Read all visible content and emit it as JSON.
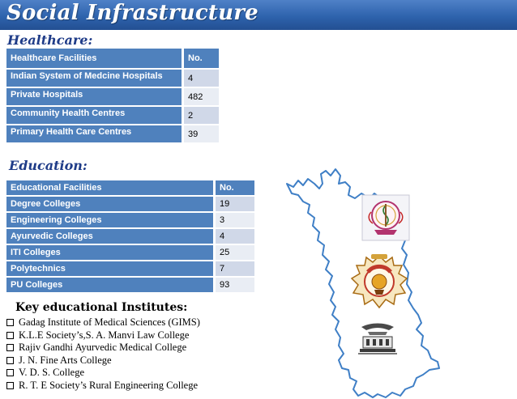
{
  "header": {
    "title": "Social Infrastructure"
  },
  "healthcare": {
    "heading": "Healthcare:",
    "columns": [
      "Healthcare Facilities",
      "No."
    ],
    "rows": [
      {
        "name": "Indian System of Medcine Hospitals",
        "value": "4"
      },
      {
        "name": "Private Hospitals",
        "value": "482"
      },
      {
        "name": "Community Health Centres",
        "value": "2"
      },
      {
        "name": "Primary Health Care Centres",
        "value": "39"
      }
    ]
  },
  "education": {
    "heading": "Education:",
    "columns": [
      "Educational Facilities",
      "No."
    ],
    "rows": [
      {
        "name": "Degree Colleges",
        "value": "19"
      },
      {
        "name": "Engineering Colleges",
        "value": "3"
      },
      {
        "name": "Ayurvedic Colleges",
        "value": "4"
      },
      {
        "name": "ITI Colleges",
        "value": "25"
      },
      {
        "name": "Polytechnics",
        "value": "7"
      },
      {
        "name": "PU Colleges",
        "value": "93"
      }
    ]
  },
  "institutes": {
    "title": "Key educational Institutes:",
    "items": [
      "Gadag Institute of Medical Sciences (GIMS)",
      "K.L.E Society’s,S. A. Manvi Law College",
      "Rajiv Gandhi Ayurvedic Medical College",
      "J. N. Fine Arts College",
      "V. D. S. College",
      "R. T. E Society’s Rural Engineering College"
    ]
  },
  "colors": {
    "title_bar": "#2e63ad",
    "table_header": "#4f81bd",
    "row_odd": "#d0d8e8",
    "row_even": "#e9edf4",
    "heading_text": "#1f3c88",
    "map_outline": "#3f7fc6"
  },
  "map": {
    "icon": "district-map-outline-icon"
  },
  "logos": [
    "medical-emblem-logo",
    "lingayat-education-society-logo",
    "college-building-logo"
  ]
}
